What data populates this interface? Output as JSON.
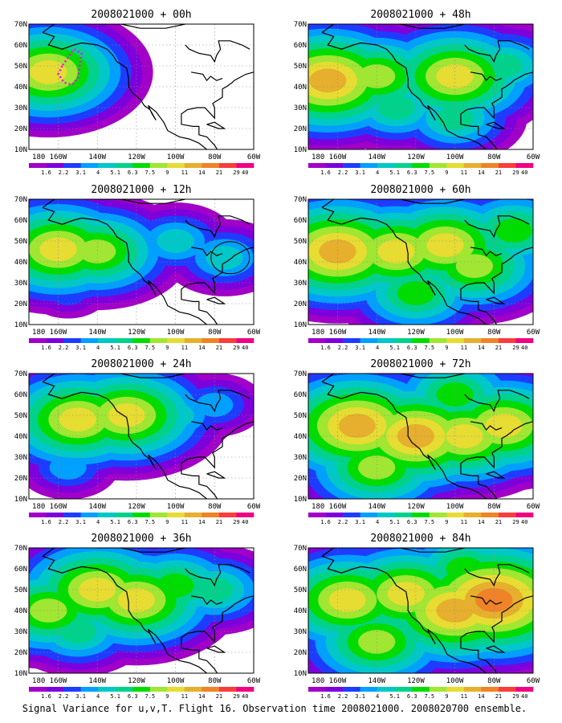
{
  "figure_caption": "Signal Variance for u,v,T. Flight 16. Observation time 2008021000. 2008020700 ensemble.",
  "colorbar": {
    "labels": [
      "1.6",
      "2.2",
      "3.1",
      "4",
      "5.1",
      "6.3",
      "7.5",
      "9",
      "11",
      "14",
      "21",
      "29",
      "40"
    ],
    "colors": [
      "#a000c8",
      "#7d00dc",
      "#1e3cff",
      "#00a0ff",
      "#00c8c8",
      "#00d28c",
      "#00dc00",
      "#a0e632",
      "#e6dc32",
      "#e6af2d",
      "#f08228",
      "#fa3c3c",
      "#f00082"
    ]
  },
  "chart_data": [
    {
      "type": "heatmap",
      "title": "2008021000 + 00h",
      "xlabels": [
        "180",
        "160W",
        "140W",
        "120W",
        "100W",
        "80W",
        "60W"
      ],
      "ylabels": [
        "10N",
        "20N",
        "30N",
        "40N",
        "50N",
        "60N",
        "70N"
      ],
      "xlim": [
        -175,
        -60
      ],
      "ylim": [
        10,
        70
      ],
      "grid": true,
      "blobs": [
        {
          "lon": -165,
          "lat": 47,
          "lev": 8
        },
        {
          "lon": -145,
          "lat": 45,
          "lev": 4
        },
        {
          "lon": -150,
          "lat": 30,
          "lev": 2
        },
        {
          "lon": -140,
          "lat": 50,
          "lev": 2
        }
      ],
      "annotations": [
        "dotted magenta flight track"
      ]
    },
    {
      "type": "heatmap",
      "title": "2008021000 + 12h",
      "xlabels": [
        "180",
        "160W",
        "140W",
        "120W",
        "100W",
        "80W",
        "60W"
      ],
      "ylabels": [
        "10N",
        "20N",
        "30N",
        "40N",
        "50N",
        "60N",
        "70N"
      ],
      "xlim": [
        -175,
        -60
      ],
      "ylim": [
        10,
        70
      ],
      "grid": true,
      "blobs": [
        {
          "lon": -160,
          "lat": 46,
          "lev": 8
        },
        {
          "lon": -140,
          "lat": 45,
          "lev": 7
        },
        {
          "lon": -100,
          "lat": 50,
          "lev": 4
        },
        {
          "lon": -75,
          "lat": 42,
          "lev": 4
        },
        {
          "lon": -155,
          "lat": 25,
          "lev": 2
        }
      ],
      "annotations": [
        "black circle near 75W 43N"
      ]
    },
    {
      "type": "heatmap",
      "title": "2008021000 + 24h",
      "xlabels": [
        "180",
        "160W",
        "140W",
        "120W",
        "100W",
        "80W",
        "60W"
      ],
      "ylabels": [
        "10N",
        "20N",
        "30N",
        "40N",
        "50N",
        "60N",
        "70N"
      ],
      "xlim": [
        -175,
        -60
      ],
      "ylim": [
        10,
        70
      ],
      "grid": true,
      "blobs": [
        {
          "lon": -150,
          "lat": 48,
          "lev": 8
        },
        {
          "lon": -125,
          "lat": 50,
          "lev": 8
        },
        {
          "lon": -100,
          "lat": 50,
          "lev": 4
        },
        {
          "lon": -80,
          "lat": 55,
          "lev": 3
        },
        {
          "lon": -155,
          "lat": 25,
          "lev": 3
        }
      ]
    },
    {
      "type": "heatmap",
      "title": "2008021000 + 36h",
      "xlabels": [
        "180",
        "160W",
        "140W",
        "120W",
        "100W",
        "80W",
        "60W"
      ],
      "ylabels": [
        "10N",
        "20N",
        "30N",
        "40N",
        "50N",
        "60N",
        "70N"
      ],
      "xlim": [
        -175,
        -60
      ],
      "ylim": [
        10,
        70
      ],
      "grid": true,
      "blobs": [
        {
          "lon": -165,
          "lat": 40,
          "lev": 7
        },
        {
          "lon": -140,
          "lat": 50,
          "lev": 8
        },
        {
          "lon": -120,
          "lat": 45,
          "lev": 8
        },
        {
          "lon": -100,
          "lat": 52,
          "lev": 6
        },
        {
          "lon": -80,
          "lat": 50,
          "lev": 5
        },
        {
          "lon": -150,
          "lat": 30,
          "lev": 5
        }
      ]
    },
    {
      "type": "heatmap",
      "title": "2008021000 + 48h",
      "xlabels": [
        "180",
        "160W",
        "140W",
        "120W",
        "100W",
        "80W",
        "60W"
      ],
      "ylabels": [
        "10N",
        "20N",
        "30N",
        "40N",
        "50N",
        "60N",
        "70N"
      ],
      "xlim": [
        -175,
        -60
      ],
      "ylim": [
        10,
        70
      ],
      "grid": true,
      "blobs": [
        {
          "lon": -165,
          "lat": 43,
          "lev": 9
        },
        {
          "lon": -140,
          "lat": 45,
          "lev": 7
        },
        {
          "lon": -100,
          "lat": 45,
          "lev": 8
        },
        {
          "lon": -75,
          "lat": 50,
          "lev": 5
        },
        {
          "lon": -130,
          "lat": 30,
          "lev": 5
        },
        {
          "lon": -100,
          "lat": 25,
          "lev": 5
        }
      ]
    },
    {
      "type": "heatmap",
      "title": "2008021000 + 60h",
      "xlabels": [
        "180",
        "160W",
        "140W",
        "120W",
        "100W",
        "80W",
        "60W"
      ],
      "ylabels": [
        "10N",
        "20N",
        "30N",
        "40N",
        "50N",
        "60N",
        "70N"
      ],
      "xlim": [
        -175,
        -60
      ],
      "ylim": [
        10,
        70
      ],
      "grid": true,
      "blobs": [
        {
          "lon": -160,
          "lat": 45,
          "lev": 9
        },
        {
          "lon": -130,
          "lat": 45,
          "lev": 8
        },
        {
          "lon": -105,
          "lat": 48,
          "lev": 8
        },
        {
          "lon": -90,
          "lat": 38,
          "lev": 7
        },
        {
          "lon": -70,
          "lat": 55,
          "lev": 6
        },
        {
          "lon": -120,
          "lat": 25,
          "lev": 6
        }
      ]
    },
    {
      "type": "heatmap",
      "title": "2008021000 + 72h",
      "xlabels": [
        "180",
        "160W",
        "140W",
        "120W",
        "100W",
        "80W",
        "60W"
      ],
      "ylabels": [
        "10N",
        "20N",
        "30N",
        "40N",
        "50N",
        "60N",
        "70N"
      ],
      "xlim": [
        -175,
        -60
      ],
      "ylim": [
        10,
        70
      ],
      "grid": true,
      "blobs": [
        {
          "lon": -150,
          "lat": 45,
          "lev": 9
        },
        {
          "lon": -120,
          "lat": 40,
          "lev": 9
        },
        {
          "lon": -95,
          "lat": 40,
          "lev": 8
        },
        {
          "lon": -75,
          "lat": 45,
          "lev": 8
        },
        {
          "lon": -140,
          "lat": 25,
          "lev": 7
        },
        {
          "lon": -100,
          "lat": 60,
          "lev": 6
        }
      ]
    },
    {
      "type": "heatmap",
      "title": "2008021000 + 84h",
      "xlabels": [
        "180",
        "160W",
        "140W",
        "120W",
        "100W",
        "80W",
        "60W"
      ],
      "ylabels": [
        "10N",
        "20N",
        "30N",
        "40N",
        "50N",
        "60N",
        "70N"
      ],
      "xlim": [
        -175,
        -60
      ],
      "ylim": [
        10,
        70
      ],
      "grid": true,
      "blobs": [
        {
          "lon": -155,
          "lat": 45,
          "lev": 8
        },
        {
          "lon": -125,
          "lat": 48,
          "lev": 8
        },
        {
          "lon": -100,
          "lat": 40,
          "lev": 9
        },
        {
          "lon": -80,
          "lat": 45,
          "lev": 10
        },
        {
          "lon": -140,
          "lat": 25,
          "lev": 7
        },
        {
          "lon": -95,
          "lat": 60,
          "lev": 6
        }
      ]
    }
  ]
}
